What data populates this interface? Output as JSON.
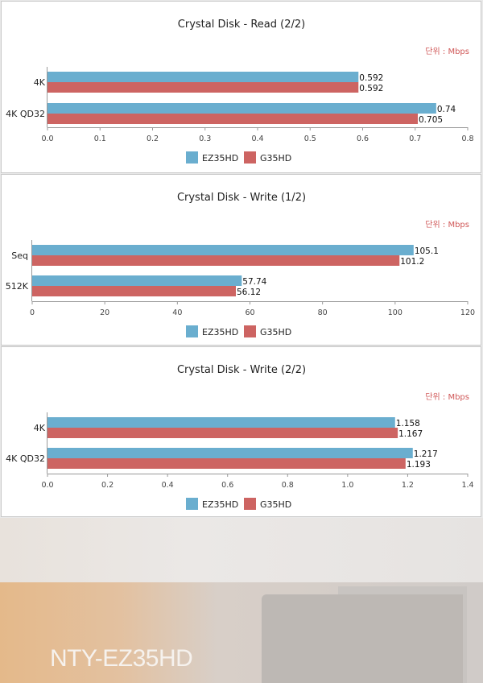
{
  "colors": {
    "series1": "#6aaecf",
    "series2": "#cd6462",
    "unit": "#d05858",
    "axis": "#555555",
    "grid": "#cccccc"
  },
  "background_photo": {
    "title": "NTY-EZ35HD"
  },
  "chart_data": [
    {
      "type": "bar",
      "orientation": "horizontal",
      "title": "Crystal Disk - Read (2/2)",
      "unit_label": "단위 : Mbps",
      "categories": [
        "4K",
        "4K QD32"
      ],
      "series": [
        {
          "name": "EZ35HD",
          "values": [
            0.592,
            0.74
          ],
          "labels": [
            "0.592",
            "0.74"
          ]
        },
        {
          "name": "G35HD",
          "values": [
            0.592,
            0.705
          ],
          "labels": [
            "0.592",
            "0.705"
          ]
        }
      ],
      "xlim": [
        0,
        0.8
      ],
      "ticks": [
        "0.0",
        "0.1",
        "0.2",
        "0.3",
        "0.4",
        "0.5",
        "0.6",
        "0.7",
        "0.8"
      ],
      "legend_position": "bottom"
    },
    {
      "type": "bar",
      "orientation": "horizontal",
      "title": "Crystal Disk - Write (1/2)",
      "unit_label": "단위 : Mbps",
      "categories": [
        "Seq",
        "512K"
      ],
      "series": [
        {
          "name": "EZ35HD",
          "values": [
            105.1,
            57.74
          ],
          "labels": [
            "105.1",
            "57.74"
          ]
        },
        {
          "name": "G35HD",
          "values": [
            101.2,
            56.12
          ],
          "labels": [
            "101.2",
            "56.12"
          ]
        }
      ],
      "xlim": [
        0,
        120
      ],
      "ticks": [
        "0",
        "20",
        "40",
        "60",
        "80",
        "100",
        "120"
      ],
      "legend_position": "bottom"
    },
    {
      "type": "bar",
      "orientation": "horizontal",
      "title": "Crystal Disk - Write (2/2)",
      "unit_label": "단위 : Mbps",
      "categories": [
        "4K",
        "4K QD32"
      ],
      "series": [
        {
          "name": "EZ35HD",
          "values": [
            1.158,
            1.217
          ],
          "labels": [
            "1.158",
            "1.217"
          ]
        },
        {
          "name": "G35HD",
          "values": [
            1.167,
            1.193
          ],
          "labels": [
            "1.167",
            "1.193"
          ]
        }
      ],
      "xlim": [
        0,
        1.4
      ],
      "ticks": [
        "0.0",
        "0.2",
        "0.4",
        "0.6",
        "0.8",
        "1.0",
        "1.2",
        "1.4"
      ],
      "legend_position": "bottom"
    }
  ]
}
